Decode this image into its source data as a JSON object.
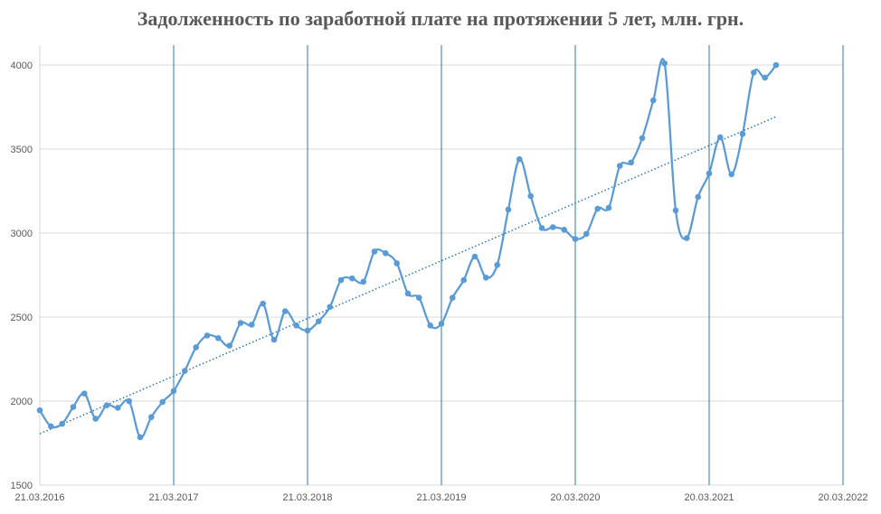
{
  "chart_data": {
    "type": "line",
    "title": "Задолженность по заработной плате на протяжении 5 лет, млн. грн.",
    "xlabel": "",
    "ylabel": "",
    "ylim": [
      1500,
      4000
    ],
    "y_ticks": [
      1500,
      2000,
      2500,
      3000,
      3500,
      4000
    ],
    "x_ticks": [
      "21.03.2016",
      "21.03.2017",
      "21.03.2018",
      "21.03.2019",
      "20.03.2020",
      "20.03.2021",
      "20.03.2022"
    ],
    "grid": "horizontal gridlines at y ticks; vertical lines at x ticks",
    "colors": {
      "series": "#5b9bd5",
      "trend": "#2e75b6",
      "grid": "#d9d9d9",
      "vline": "#2e75b6"
    },
    "series": [
      {
        "x_index": [
          0.0,
          0.083,
          0.167,
          0.25,
          0.333,
          0.417,
          0.5,
          0.583,
          0.667,
          0.75,
          0.833,
          0.917,
          1.0,
          1.083,
          1.167,
          1.25,
          1.333,
          1.417,
          1.5,
          1.583,
          1.667,
          1.75,
          1.833,
          1.917,
          2.0,
          2.083,
          2.167,
          2.25,
          2.333,
          2.417,
          2.5,
          2.583,
          2.667,
          2.75,
          2.833,
          2.917,
          3.0,
          3.083,
          3.167,
          3.25,
          3.333,
          3.417,
          3.5,
          3.583,
          3.667,
          3.75,
          3.833,
          3.917,
          4.0,
          4.083,
          4.167,
          4.25,
          4.333,
          4.417,
          4.5,
          4.583,
          4.667,
          4.75,
          4.833,
          4.917,
          5.0,
          5.083,
          5.167,
          5.25,
          5.333,
          5.417,
          5.5
        ],
        "values": [
          1945,
          1850,
          1865,
          1965,
          2045,
          1895,
          1975,
          1960,
          2000,
          1785,
          1905,
          1995,
          2060,
          2180,
          2320,
          2390,
          2375,
          2330,
          2465,
          2455,
          2580,
          2365,
          2535,
          2450,
          2420,
          2475,
          2560,
          2720,
          2730,
          2710,
          2890,
          2880,
          2820,
          2640,
          2615,
          2450,
          2460,
          2615,
          2720,
          2860,
          2735,
          2810,
          3140,
          3440,
          3220,
          3030,
          3035,
          3020,
          2965,
          2995,
          3145,
          3150,
          3400,
          3420,
          3565,
          3790,
          4010,
          3135,
          2970,
          3215,
          3355,
          3570,
          3350,
          3590,
          3955,
          3925,
          4000
        ]
      }
    ],
    "trend": {
      "type": "linear",
      "style": "dotted"
    }
  }
}
